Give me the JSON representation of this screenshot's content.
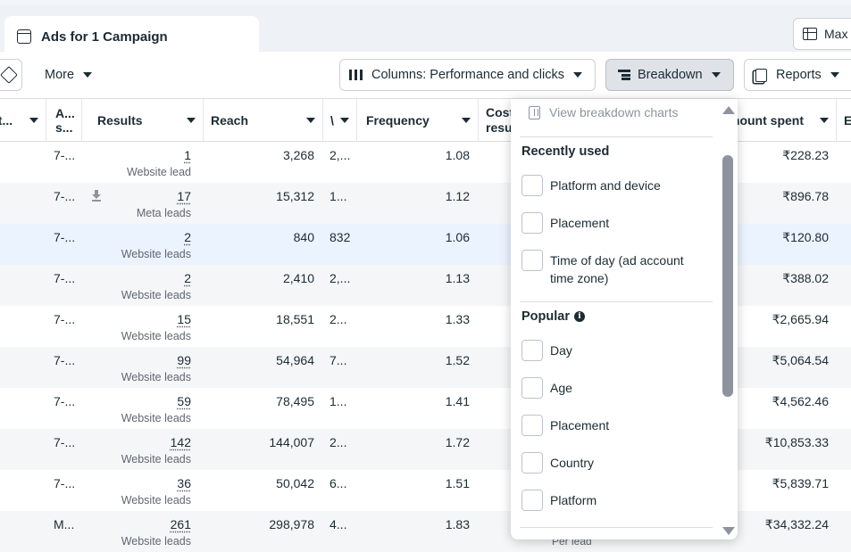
{
  "tab": {
    "title": "Ads for 1 Campaign"
  },
  "toolbar": {
    "max_label": "Max",
    "more_label": "More",
    "columns_label": "Columns: Performance and clicks",
    "breakdown_label": "Breakdown",
    "reports_label": "Reports"
  },
  "table": {
    "headers": {
      "ad": "ct...",
      "as_line1": "A...",
      "as_line2": "s...",
      "results": "Results",
      "reach": "Reach",
      "v": "\\",
      "frequency": "Frequency",
      "cost_line1": "Cost",
      "cost_line2": "resu",
      "amount": "mount spent",
      "e": "E"
    },
    "rows": [
      {
        "as": "7-...",
        "results": "1",
        "results_sub": "Website lead",
        "reach": "3,268",
        "v": "2,...",
        "frequency": "1.08",
        "amount": "₹228.23"
      },
      {
        "as": "7-...",
        "results": "17",
        "results_sub": "Meta leads",
        "reach": "15,312",
        "v": "1...",
        "frequency": "1.12",
        "amount": "₹896.78"
      },
      {
        "as": "7-...",
        "results": "2",
        "results_sub": "Website leads",
        "reach": "840",
        "v": "832",
        "frequency": "1.06",
        "amount": "₹120.80"
      },
      {
        "as": "7-...",
        "results": "2",
        "results_sub": "Website leads",
        "reach": "2,410",
        "v": "2,...",
        "frequency": "1.13",
        "amount": "₹388.02"
      },
      {
        "as": "7-...",
        "results": "15",
        "results_sub": "Website leads",
        "reach": "18,551",
        "v": "2...",
        "frequency": "1.33",
        "amount": "₹2,665.94"
      },
      {
        "as": "7-...",
        "results": "99",
        "results_sub": "Website leads",
        "reach": "54,964",
        "v": "7...",
        "frequency": "1.52",
        "amount": "₹5,064.54"
      },
      {
        "as": "7-...",
        "results": "59",
        "results_sub": "Website leads",
        "reach": "78,495",
        "v": "1...",
        "frequency": "1.41",
        "amount": "₹4,562.46"
      },
      {
        "as": "7-...",
        "results": "142",
        "results_sub": "Website leads",
        "reach": "144,007",
        "v": "2...",
        "frequency": "1.72",
        "amount": "₹10,853.33"
      },
      {
        "as": "7-...",
        "results": "36",
        "results_sub": "Website leads",
        "reach": "50,042",
        "v": "6...",
        "frequency": "1.51",
        "amount": "₹5,839.71"
      },
      {
        "as": "M...",
        "results": "261",
        "results_sub": "Website leads",
        "reach": "298,978",
        "v": "4...",
        "frequency": "1.83",
        "amount": "₹34,332.24"
      }
    ],
    "per_lead": "Per lead"
  },
  "breakdown_menu": {
    "view_charts": "View breakdown charts",
    "recently_used_title": "Recently used",
    "recently_used": [
      "Platform and device",
      "Placement",
      "Time of day (ad account time zone)"
    ],
    "popular_title": "Popular",
    "popular": [
      "Day",
      "Age",
      "Placement",
      "Country",
      "Platform"
    ]
  },
  "colors": {
    "text": "#1c2b33",
    "muted": "#606770",
    "highlight_row": "#ebf3fe",
    "alt_row": "#f5f6f7",
    "active_button": "#dfe3e8"
  }
}
